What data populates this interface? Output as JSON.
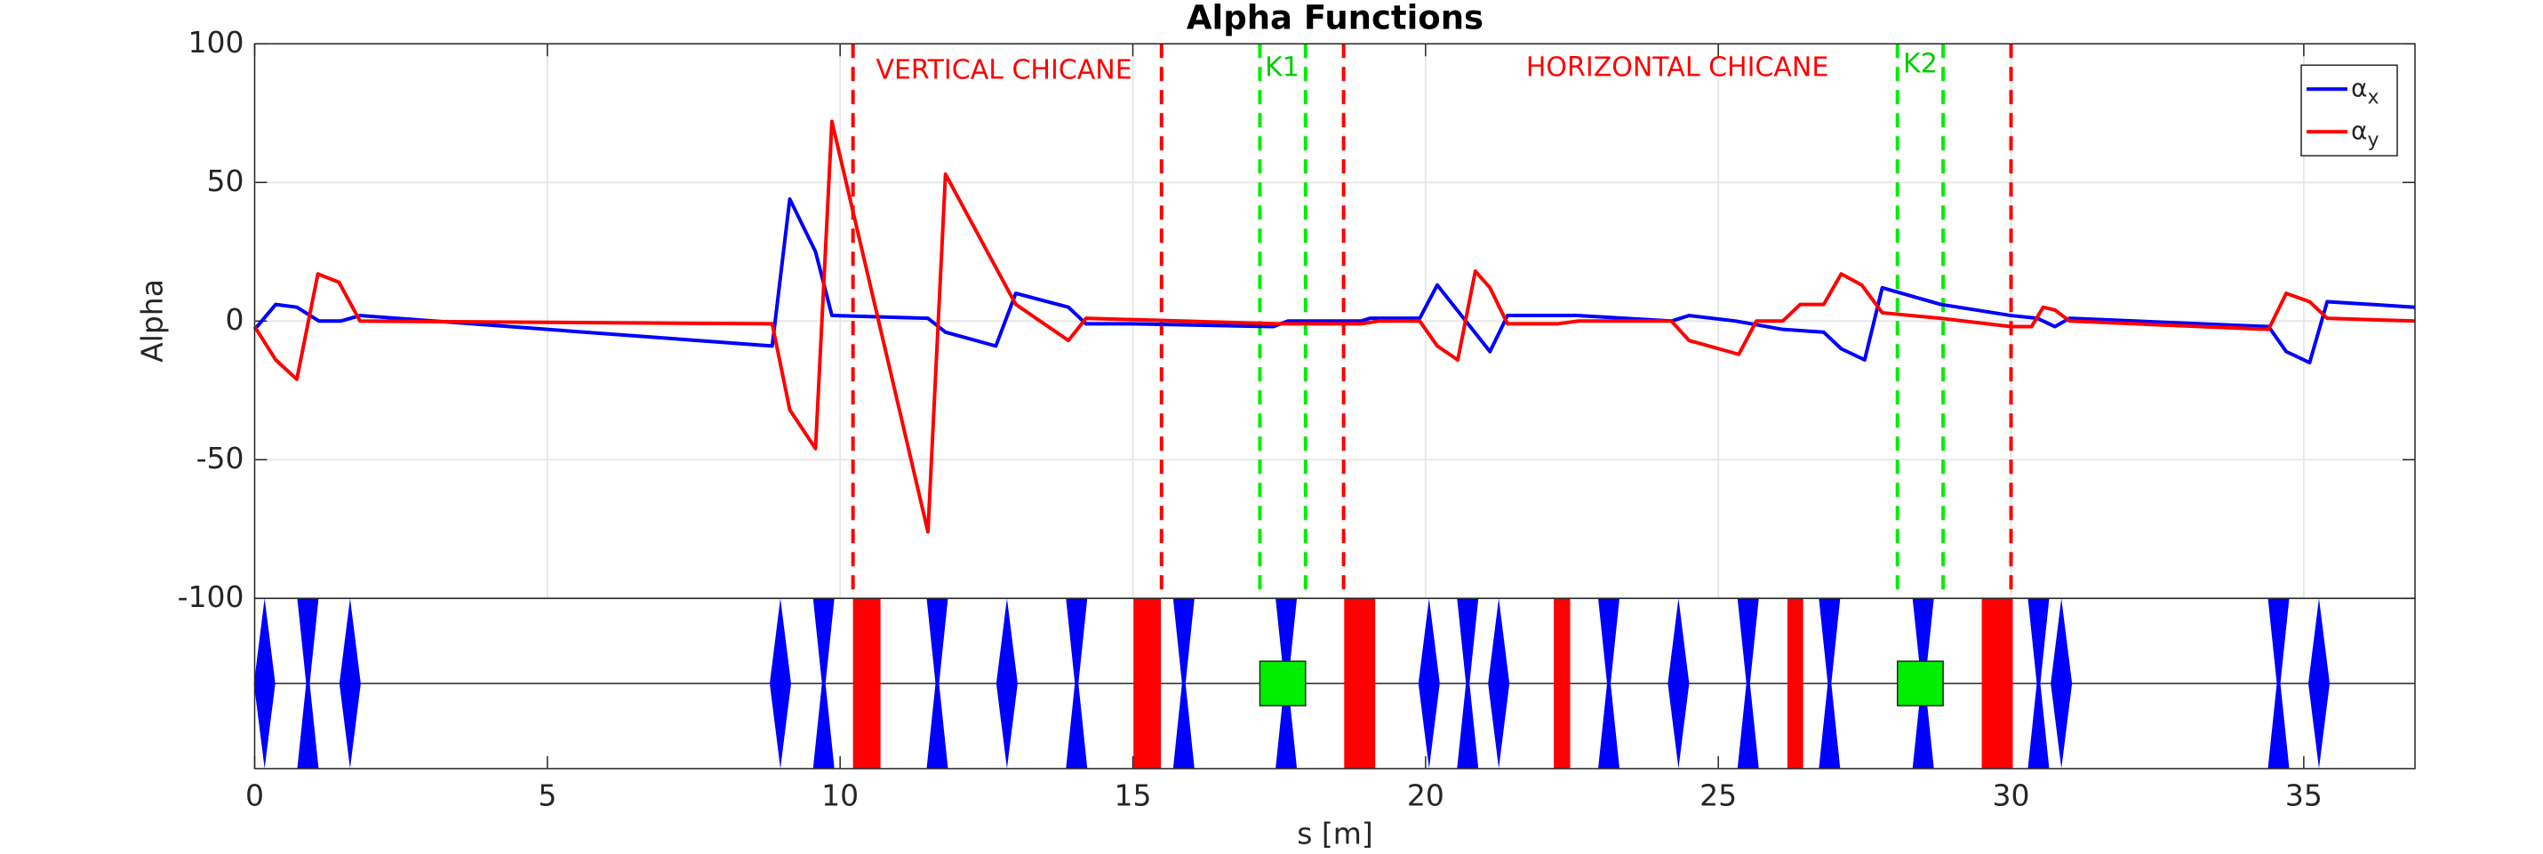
{
  "chart_data": {
    "type": "line",
    "title": "Alpha Functions",
    "xlabel": "s [m]",
    "ylabel": "Alpha",
    "xlim": [
      0,
      36.9
    ],
    "ylim": [
      -100,
      100
    ],
    "xticks": [
      0,
      5,
      10,
      15,
      20,
      25,
      30,
      35
    ],
    "yticks": [
      100,
      50,
      0,
      -50,
      -100
    ],
    "grid": true,
    "legend": "upper right",
    "series": [
      {
        "name": "αx",
        "color": "#0000ff",
        "x": [
          0,
          0.36,
          0.72,
          1.1,
          1.47,
          1.8,
          8.84,
          9.14,
          9.58,
          9.86,
          11.5,
          11.8,
          12.66,
          13.0,
          13.9,
          14.2,
          15.0,
          17.4,
          17.65,
          18.9,
          19.05,
          19.9,
          20.2,
          21.1,
          21.4,
          22.25,
          22.6,
          24.2,
          24.5,
          25.3,
          26.1,
          26.8,
          27.1,
          27.5,
          27.8,
          28.3,
          28.8,
          30.0,
          30.45,
          30.75,
          31.0,
          34.4,
          34.7,
          35.1,
          35.4,
          36.9
        ],
        "values": [
          -3,
          6,
          5,
          0,
          0,
          2,
          -9,
          44,
          25,
          2,
          1,
          -4,
          -9,
          10,
          5,
          -1,
          -1,
          -2,
          0,
          0,
          1,
          1,
          13,
          -11,
          2,
          2,
          2,
          0,
          2,
          0,
          -3,
          -4,
          -10,
          -14,
          12,
          9,
          6,
          2,
          1,
          -2,
          1,
          -2,
          -11,
          -15,
          7,
          5
        ]
      },
      {
        "name": "αy",
        "color": "#ff0000",
        "x": [
          0,
          0.36,
          0.72,
          1.08,
          1.44,
          1.8,
          8.84,
          9.14,
          9.58,
          9.86,
          11.5,
          11.8,
          13.0,
          13.9,
          14.2,
          17.5,
          18.9,
          19.2,
          19.9,
          20.2,
          20.55,
          20.85,
          21.1,
          21.4,
          22.25,
          22.6,
          24.2,
          24.5,
          25.35,
          25.65,
          26.1,
          26.4,
          26.8,
          27.1,
          27.45,
          27.8,
          28.8,
          30.0,
          30.35,
          30.55,
          30.75,
          31.0,
          34.4,
          34.7,
          35.1,
          35.4,
          36.9
        ],
        "values": [
          -2,
          -14,
          -21,
          17,
          14,
          0,
          -1,
          -32,
          -46,
          72,
          -76,
          53,
          6,
          -7,
          1,
          -1,
          -1,
          0,
          0,
          -9,
          -14,
          18,
          12,
          -1,
          -1,
          0,
          0,
          -7,
          -12,
          0,
          0,
          6,
          6,
          17,
          13,
          3,
          1,
          -2,
          -2,
          5,
          4,
          0,
          -3,
          10,
          7,
          1,
          0
        ]
      }
    ],
    "markers": [
      {
        "s": 10.22,
        "color": "#ff0000"
      },
      {
        "s": 15.49,
        "color": "#ff0000"
      },
      {
        "s": 18.6,
        "color": "#ff0000"
      },
      {
        "s": 30.0,
        "color": "#ff0000"
      },
      {
        "s": 17.17,
        "color": "#00ee00"
      },
      {
        "s": 17.95,
        "color": "#00ee00"
      },
      {
        "s": 28.06,
        "color": "#00ee00"
      },
      {
        "s": 28.84,
        "color": "#00ee00"
      }
    ],
    "annotations": [
      {
        "text": "VERTICAL CHICANE",
        "color": "#ff0000"
      },
      {
        "text": "K1",
        "color": "#00cc00"
      },
      {
        "text": "HORIZONTAL CHICANE",
        "color": "#ff0000"
      },
      {
        "text": "K2",
        "color": "#00cc00"
      }
    ],
    "lattice": {
      "quadrupole_color": "#0000ff",
      "dipole_color": "#ff0000",
      "kicker_color": "#00ee00",
      "quadrupoles": [
        {
          "s": 0.17,
          "focusing": true
        },
        {
          "s": 0.91,
          "focusing": false
        },
        {
          "s": 1.63,
          "focusing": true
        },
        {
          "s": 8.98,
          "focusing": true
        },
        {
          "s": 9.72,
          "focusing": false
        },
        {
          "s": 11.66,
          "focusing": false
        },
        {
          "s": 12.85,
          "focusing": true
        },
        {
          "s": 14.04,
          "focusing": false
        },
        {
          "s": 15.87,
          "focusing": false
        },
        {
          "s": 17.62,
          "focusing": false
        },
        {
          "s": 20.06,
          "focusing": true
        },
        {
          "s": 20.72,
          "focusing": false
        },
        {
          "s": 21.25,
          "focusing": true
        },
        {
          "s": 23.13,
          "focusing": false
        },
        {
          "s": 24.32,
          "focusing": true
        },
        {
          "s": 25.51,
          "focusing": false
        },
        {
          "s": 26.9,
          "focusing": false
        },
        {
          "s": 28.5,
          "focusing": false
        },
        {
          "s": 30.47,
          "focusing": false
        },
        {
          "s": 30.86,
          "focusing": true
        },
        {
          "s": 34.57,
          "focusing": false
        },
        {
          "s": 35.26,
          "focusing": true
        }
      ],
      "dipoles": [
        [
          10.22,
          10.69
        ],
        [
          15.01,
          15.48
        ],
        [
          18.61,
          19.14
        ],
        [
          22.19,
          22.47
        ],
        [
          26.18,
          26.45
        ],
        [
          29.5,
          30.03
        ]
      ],
      "kickers": [
        [
          17.17,
          17.95
        ],
        [
          28.06,
          28.84
        ]
      ]
    }
  }
}
